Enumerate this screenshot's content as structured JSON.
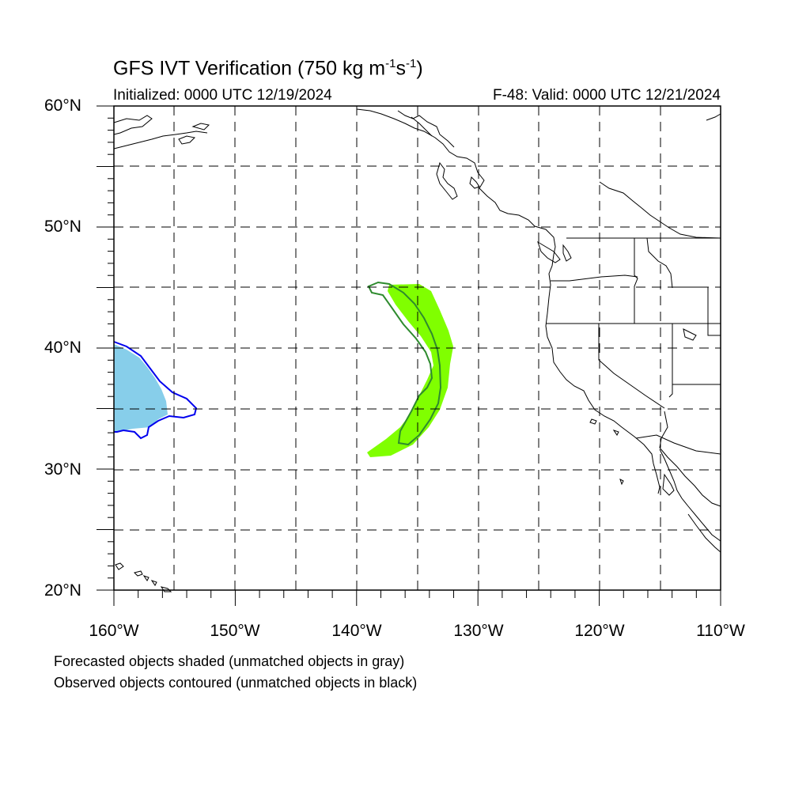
{
  "title": {
    "main": "GFS IVT Verification (750 kg m",
    "exp1": "-1",
    "mid": "s",
    "exp2": "-1",
    "close": ")"
  },
  "init_label": "Initialized: 0000 UTC 12/19/2024",
  "valid_label": "F-48: Valid: 0000 UTC 12/21/2024",
  "lat_labels": [
    "60°N",
    "50°N",
    "40°N",
    "30°N",
    "20°N"
  ],
  "lon_labels": [
    "160°W",
    "150°W",
    "140°W",
    "130°W",
    "120°W",
    "110°W"
  ],
  "legend": {
    "line1": "Forecasted objects shaded (unmatched objects in gray)",
    "line2": "Observed objects contoured (unmatched objects in black)"
  },
  "colors": {
    "forecast_object_1": "#87ceea",
    "observed_object_1": "#0000ee",
    "forecast_object_2": "#80ff00",
    "observed_object_2": "#2e8b2e",
    "coastline": "#000000",
    "grid": "#000000"
  }
}
